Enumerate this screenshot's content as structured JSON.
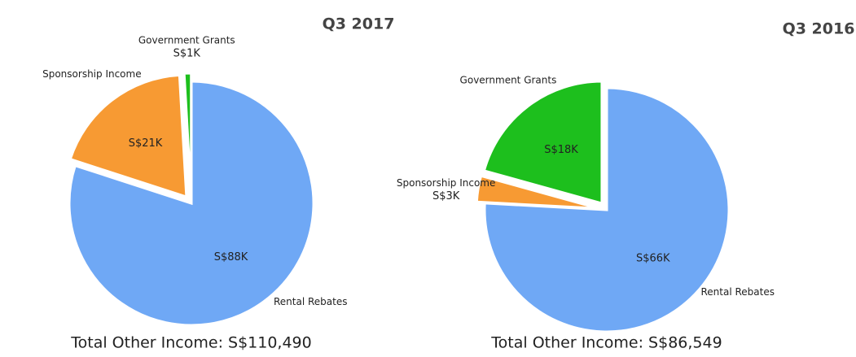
{
  "chart_data": [
    {
      "type": "pie",
      "title": "Q3 2017",
      "categories": [
        "Rental Rebates",
        "Sponsorship Income",
        "Government Grants"
      ],
      "values": [
        88,
        21,
        1
      ],
      "value_labels": [
        "S$88K",
        "S$21K",
        "S$1K"
      ],
      "colors": [
        "#6fa8f5",
        "#f79a33",
        "#1dbf1d"
      ],
      "footer": "Total Other Income:  S$110,490"
    },
    {
      "type": "pie",
      "title": "Q3 2016",
      "categories": [
        "Rental Rebates",
        "Sponsorship Income",
        "Government Grants"
      ],
      "values": [
        66,
        3,
        18
      ],
      "value_labels": [
        "S$66K",
        "S$3K",
        "S$18K"
      ],
      "colors": [
        "#6fa8f5",
        "#f79a33",
        "#1dbf1d"
      ],
      "footer": "Total Other Income:  S$86,549"
    }
  ]
}
